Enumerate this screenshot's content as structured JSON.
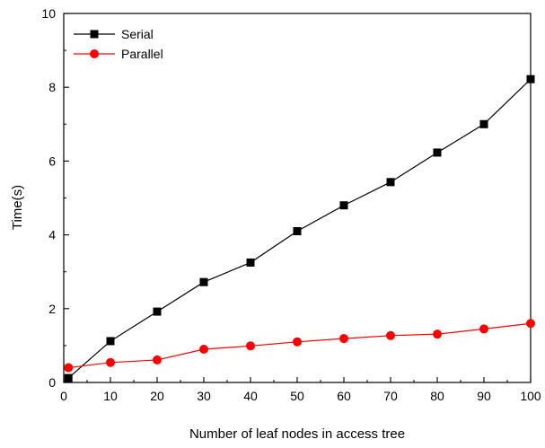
{
  "chart_data": {
    "type": "line",
    "title": "",
    "xlabel": "Number of leaf nodes in access tree",
    "ylabel": "Time(s)",
    "xlim": [
      0,
      100
    ],
    "ylim": [
      0,
      10
    ],
    "x_ticks": [
      "0",
      "10",
      "20",
      "30",
      "40",
      "50",
      "60",
      "70",
      "80",
      "90",
      "100"
    ],
    "y_ticks": [
      "0",
      "2",
      "4",
      "6",
      "8",
      "10"
    ],
    "grid": false,
    "legend_position": "top-left",
    "x": [
      1,
      10,
      20,
      30,
      40,
      50,
      60,
      70,
      80,
      90,
      100
    ],
    "series": [
      {
        "name": "Serial",
        "color": "#000000",
        "marker": "square",
        "values": [
          0.12,
          1.12,
          1.92,
          2.72,
          3.25,
          4.1,
          4.8,
          5.43,
          6.23,
          7.0,
          8.22
        ]
      },
      {
        "name": "Parallel",
        "color": "#ff0000",
        "marker": "circle",
        "values": [
          0.4,
          0.54,
          0.61,
          0.9,
          0.99,
          1.1,
          1.19,
          1.27,
          1.31,
          1.45,
          1.6
        ]
      }
    ]
  }
}
